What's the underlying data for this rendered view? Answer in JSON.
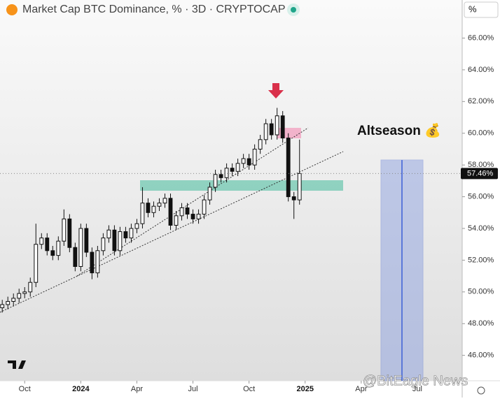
{
  "chart_data": {
    "type": "candlestick",
    "title": "Market Cap BTC Dominance, % · 3D · CRYPTOCAP",
    "y_axis_label": "%",
    "annotation": "Altseason 💰",
    "watermark": "@BitEagle News",
    "up_color": "#ffffff",
    "down_color": "#111111",
    "x": [
      2023.65,
      2023.675,
      2023.7,
      2023.725,
      2023.75,
      2023.775,
      2023.8,
      2023.825,
      2023.85,
      2023.875,
      2023.9,
      2023.925,
      2023.95,
      2023.975,
      2024,
      2024.025,
      2024.05,
      2024.075,
      2024.1,
      2024.125,
      2024.15,
      2024.175,
      2024.2,
      2024.225,
      2024.25,
      2024.275,
      2024.3,
      2024.325,
      2024.35,
      2024.375,
      2024.4,
      2024.425,
      2024.45,
      2024.475,
      2024.5,
      2024.525,
      2024.55,
      2024.575,
      2024.6,
      2024.625,
      2024.65,
      2024.675,
      2024.7,
      2024.725,
      2024.75,
      2024.775,
      2024.8,
      2024.825,
      2024.85,
      2024.875,
      2024.9,
      2024.925,
      2024.95,
      2024.975
    ],
    "open": [
      49.0,
      49.2,
      49.4,
      49.6,
      49.9,
      50.0,
      50.6,
      53.0,
      53.4,
      52.6,
      52.3,
      53.2,
      54.6,
      52.8,
      51.6,
      54.0,
      52.5,
      51.2,
      52.6,
      53.4,
      53.9,
      52.6,
      53.8,
      53.4,
      54.0,
      54.3,
      55.6,
      55.0,
      55.4,
      55.6,
      55.9,
      54.2,
      54.8,
      55.3,
      54.9,
      54.6,
      54.9,
      55.8,
      56.6,
      57.4,
      57.2,
      57.8,
      57.6,
      58.1,
      58.4,
      58.0,
      59.0,
      59.6,
      60.6,
      59.9,
      61.1,
      59.7,
      56.0,
      55.8
    ],
    "high": [
      49.5,
      49.7,
      49.9,
      50.2,
      50.3,
      50.9,
      54.3,
      53.7,
      53.7,
      52.9,
      53.5,
      55.2,
      54.9,
      53.1,
      54.3,
      54.3,
      52.8,
      52.9,
      53.7,
      54.2,
      54.2,
      54.1,
      54.1,
      54.3,
      54.6,
      56.6,
      55.9,
      55.7,
      55.9,
      56.2,
      56.2,
      55.1,
      55.6,
      55.6,
      55.2,
      55.2,
      56.1,
      56.9,
      57.7,
      57.7,
      58.1,
      58.1,
      58.4,
      58.7,
      58.7,
      59.3,
      59.9,
      60.9,
      60.9,
      61.6,
      61.4,
      60.0,
      56.3,
      59.6
    ],
    "low": [
      48.7,
      48.9,
      49.1,
      49.3,
      49.6,
      49.7,
      50.3,
      52.7,
      52.3,
      52.0,
      52.0,
      52.9,
      52.5,
      51.3,
      51.3,
      52.2,
      50.8,
      50.9,
      52.3,
      53.1,
      52.3,
      52.3,
      53.1,
      53.1,
      53.7,
      54.0,
      54.7,
      54.7,
      55.1,
      55.3,
      53.9,
      53.9,
      54.5,
      54.6,
      54.3,
      54.3,
      54.6,
      55.5,
      56.3,
      56.9,
      56.9,
      57.3,
      57.3,
      57.8,
      57.7,
      57.7,
      58.7,
      59.3,
      59.6,
      59.6,
      59.4,
      55.7,
      54.6,
      55.5
    ],
    "close": [
      49.2,
      49.4,
      49.6,
      49.9,
      50.0,
      50.6,
      53.0,
      53.4,
      52.6,
      52.3,
      53.2,
      54.6,
      52.8,
      51.6,
      54.0,
      52.5,
      51.2,
      52.6,
      53.4,
      53.9,
      52.6,
      53.8,
      53.4,
      54.0,
      54.3,
      55.6,
      55.0,
      55.4,
      55.6,
      55.9,
      54.2,
      54.8,
      55.3,
      54.9,
      54.6,
      54.9,
      55.8,
      56.6,
      57.4,
      57.2,
      57.8,
      57.6,
      58.1,
      58.4,
      58.0,
      59.0,
      59.6,
      60.6,
      59.9,
      61.1,
      59.7,
      56.0,
      55.8,
      57.46
    ],
    "last_price": {
      "value": 57.46,
      "label": "57.46%"
    },
    "xlim": [
      2023.64,
      2025.7
    ],
    "ylim": [
      44.4,
      68.4
    ],
    "xticks": [
      {
        "value": 2023.75,
        "label": "Oct"
      },
      2024,
      {
        "value": 2024.25,
        "label": "Apr"
      },
      {
        "value": 2024.5,
        "label": "Jul"
      },
      {
        "value": 2024.75,
        "label": "Oct"
      },
      2025,
      {
        "value": 2025.25,
        "label": "Apr"
      },
      {
        "value": 2025.5,
        "label": "Jul"
      }
    ],
    "yticks": [
      {
        "value": 46,
        "label": "46.00%"
      },
      {
        "value": 48,
        "label": "48.00%"
      },
      {
        "value": 50,
        "label": "50.00%"
      },
      {
        "value": 52,
        "label": "52.00%"
      },
      {
        "value": 54,
        "label": "54.00%"
      },
      {
        "value": 56,
        "label": "56.00%"
      },
      {
        "value": 58,
        "label": "58.00%"
      },
      {
        "value": 60,
        "label": "60.00%"
      },
      {
        "value": 62,
        "label": "62.00%"
      },
      {
        "value": 64,
        "label": "64.00%"
      },
      {
        "value": 66,
        "label": "66.00%"
      }
    ]
  }
}
